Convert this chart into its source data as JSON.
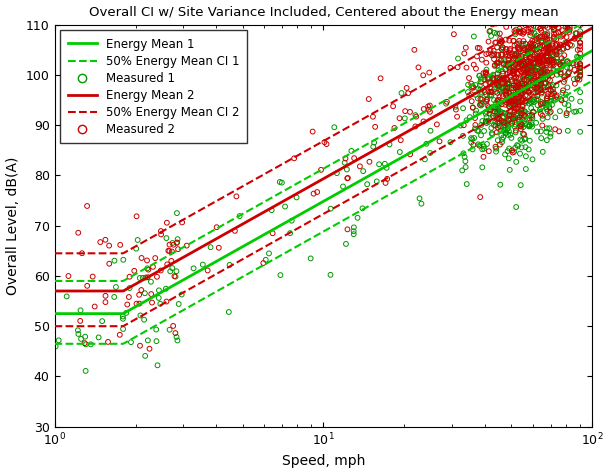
{
  "title": "Overall CI w/ Site Variance Included, Centered about the Energy mean",
  "xlabel": "Speed, mph",
  "ylabel": "Overall Level, dB(A)",
  "xlim": [
    1,
    100
  ],
  "ylim": [
    30,
    110
  ],
  "yticks": [
    30,
    40,
    50,
    60,
    70,
    80,
    90,
    100,
    110
  ],
  "green_mean_params": {
    "a": 52.5,
    "b": 30.0,
    "k": 1.8
  },
  "red_mean_params": {
    "a": 57.0,
    "b": 30.0,
    "k": 1.8
  },
  "green_ci_upper_params": {
    "a": 59.0,
    "b": 30.0,
    "k": 1.8
  },
  "green_ci_lower_params": {
    "a": 46.5,
    "b": 30.0,
    "k": 1.8
  },
  "red_ci_upper_params": {
    "a": 64.5,
    "b": 30.0,
    "k": 1.8
  },
  "red_ci_lower_params": {
    "a": 50.0,
    "b": 30.0,
    "k": 1.8
  },
  "green_color": "#00cc00",
  "red_color": "#cc0000",
  "scatter_green_color": "#009900",
  "scatter_red_color": "#cc0000",
  "n_measured1": 700,
  "n_measured2": 700,
  "seed1": 42,
  "seed2": 99
}
